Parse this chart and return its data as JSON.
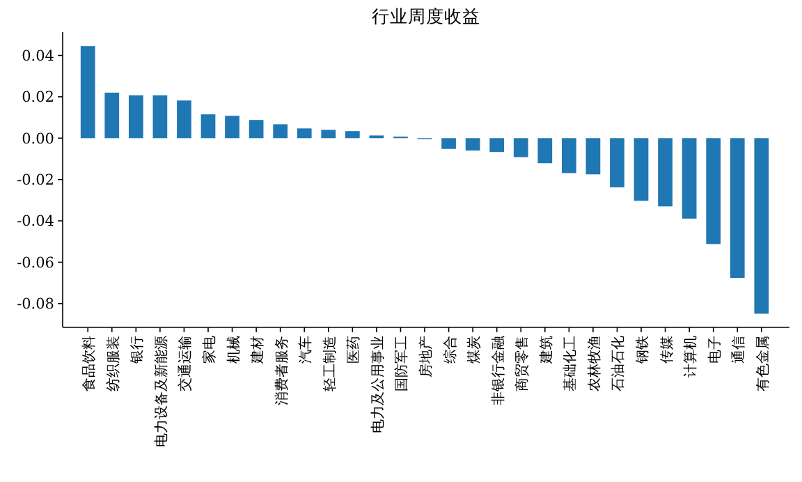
{
  "chart_data": {
    "type": "bar",
    "title": "行业周度收益",
    "categories": [
      "食品饮料",
      "纺织服装",
      "银行",
      "电力设备及新能源",
      "交通运输",
      "家电",
      "机械",
      "建材",
      "消费者服务",
      "汽车",
      "轻工制造",
      "医药",
      "电力及公用事业",
      "国防军工",
      "房地产",
      "综合",
      "煤炭",
      "非银行金融",
      "商贸零售",
      "建筑",
      "基础化工",
      "农林牧渔",
      "石油石化",
      "钢铁",
      "传媒",
      "计算机",
      "电子",
      "通信",
      "有色金属"
    ],
    "values": [
      0.0445,
      0.022,
      0.0207,
      0.0207,
      0.0182,
      0.0115,
      0.0108,
      0.0088,
      0.0067,
      0.0047,
      0.004,
      0.0034,
      0.0013,
      0.0007,
      -0.0005,
      -0.0052,
      -0.006,
      -0.0067,
      -0.0092,
      -0.0121,
      -0.0169,
      -0.0175,
      -0.0238,
      -0.0303,
      -0.033,
      -0.0389,
      -0.0512,
      -0.0676,
      -0.0849
    ],
    "color": "#1f77b4",
    "ylim": [
      -0.0915,
      0.0513
    ],
    "yticks": [
      {
        "value": 0.04,
        "label": "0.04"
      },
      {
        "value": 0.02,
        "label": "0.02"
      },
      {
        "value": 0,
        "label": "0.00"
      },
      {
        "value": -0.02,
        "label": "-0.02"
      },
      {
        "value": -0.04,
        "label": "-0.04"
      },
      {
        "value": -0.06,
        "label": "-0.06"
      },
      {
        "value": -0.08,
        "label": "-0.08"
      }
    ],
    "grid": false
  }
}
